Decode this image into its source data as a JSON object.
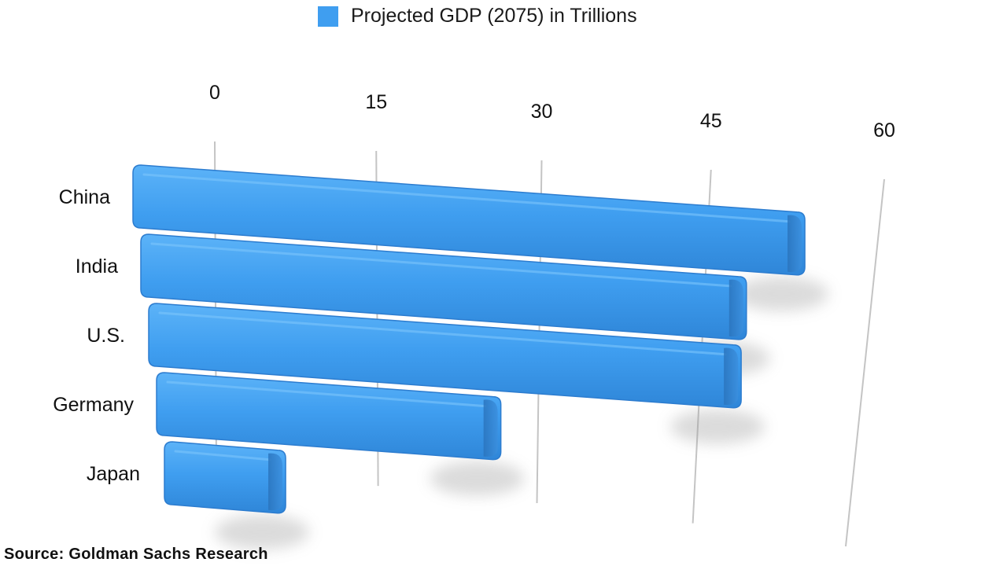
{
  "chart_data": {
    "type": "bar",
    "orientation": "horizontal",
    "categories": [
      "China",
      "India",
      "U.S.",
      "Germany",
      "Japan"
    ],
    "series": [
      {
        "name": "Projected GDP (2075) in Trillions",
        "values": [
          57,
          52,
          51.5,
          30.3,
          10.8
        ]
      }
    ],
    "xticks": [
      "0",
      "15",
      "30",
      "45",
      "60"
    ],
    "xlim": [
      0,
      60
    ],
    "grid": true,
    "legend_position": "top",
    "colors": {
      "bar": "#3f9ef0",
      "bar_shadow": "#2a78c4",
      "grid": "#c4c4c4"
    }
  },
  "source": "Source: Goldman Sachs Research"
}
